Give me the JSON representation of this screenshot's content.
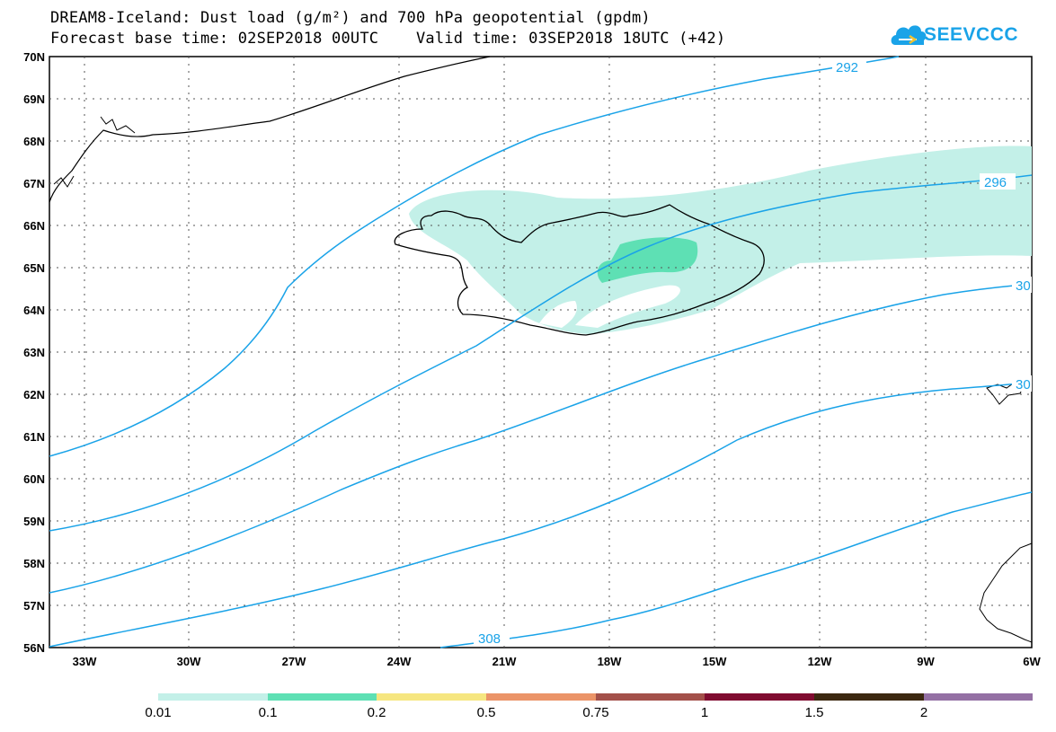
{
  "title_line1": "DREAM8-Iceland: Dust load (g/m²) and 700 hPa geopotential (gpdm)",
  "title_line2": "Forecast base time: 02SEP2018 00UTC    Valid time: 03SEP2018 18UTC (+42)",
  "logo_text": "SEEVCCC",
  "lat_labels": [
    "70N",
    "69N",
    "68N",
    "67N",
    "66N",
    "65N",
    "64N",
    "63N",
    "62N",
    "61N",
    "60N",
    "59N",
    "58N",
    "57N",
    "56N"
  ],
  "lon_labels": [
    "33W",
    "30W",
    "27W",
    "24W",
    "21W",
    "18W",
    "15W",
    "12W",
    "9W",
    "6W"
  ],
  "contour_labels": [
    "292",
    "296",
    "30",
    "308",
    "30"
  ],
  "legend": {
    "colors": [
      "#c3f0e8",
      "#5ee0b4",
      "#f6e680",
      "#eb9468",
      "#a3504a",
      "#800c30",
      "#3c2810",
      "#9470a4"
    ],
    "labels": [
      "0.01",
      "0.1",
      "0.2",
      "0.5",
      "0.75",
      "1",
      "1.5",
      "2"
    ]
  },
  "colors": {
    "contour": "#1aa3e8",
    "dust_light": "#c3f0e8",
    "dust_mid": "#5ee0b4"
  }
}
